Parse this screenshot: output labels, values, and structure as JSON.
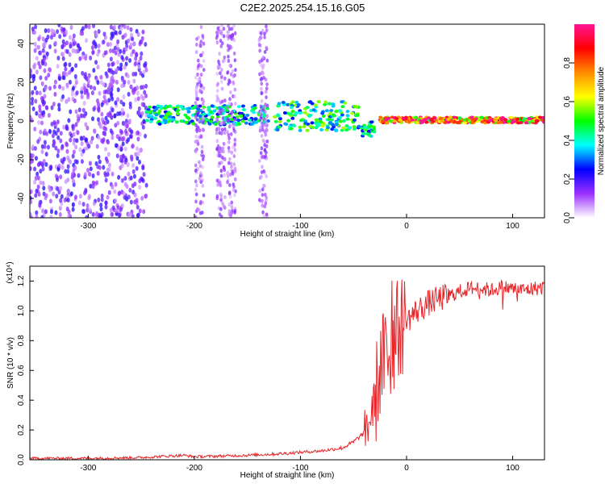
{
  "title": "C2E2.2025.254.15.16.G05",
  "chart_data": [
    {
      "type": "heatmap",
      "xlabel": "Height of straight line (km)",
      "ylabel": "Frequency (Hz)",
      "xlim": [
        -355,
        130
      ],
      "ylim": [
        -50,
        50
      ],
      "xticks": [
        -300,
        -200,
        -100,
        0,
        100
      ],
      "yticks": [
        -40,
        -20,
        0,
        20,
        40
      ],
      "colorbar": {
        "label": "Normalized spectral amplitude",
        "range": [
          0.0,
          1.0
        ],
        "ticks": [
          "0.0",
          "0.2",
          "0.4",
          "0.6",
          "0.8"
        ],
        "tick_values": [
          0.0,
          0.2,
          0.4,
          0.6,
          0.8
        ],
        "colors": [
          "#ffffff",
          "#9b30ff",
          "#0000ff",
          "#00ffff",
          "#00ff00",
          "#ffff00",
          "#ff8c00",
          "#ff0000",
          "#ff1493"
        ]
      },
      "regions": [
        {
          "x_range": [
            -355,
            -245
          ],
          "f_range": [
            -50,
            50
          ],
          "amplitude": 0.15,
          "description_value": "dense noise"
        },
        {
          "x_range": [
            -245,
            -130
          ],
          "f_range": [
            -2,
            8
          ],
          "amplitude": 0.45
        },
        {
          "x_range": [
            -125,
            -45
          ],
          "f_range": [
            -5,
            10
          ],
          "amplitude": 0.5
        },
        {
          "x_range": [
            -45,
            -30
          ],
          "f_range": [
            -8,
            0
          ],
          "amplitude": 0.45
        },
        {
          "x_range": [
            -25,
            130
          ],
          "f_range": [
            -1,
            2
          ],
          "amplitude": 0.9
        }
      ]
    },
    {
      "type": "line",
      "xlabel": "Height of straight line (km)",
      "ylabel": "SNR (10 * v/v)",
      "multiplier": "(x10⁴)",
      "xlim": [
        -355,
        130
      ],
      "ylim": [
        0.0,
        1.3
      ],
      "xticks": [
        -300,
        -200,
        -100,
        0,
        100
      ],
      "yticks": [
        "0.0",
        "0.2",
        "0.4",
        "0.6",
        "0.8",
        "1.0",
        "1.2"
      ],
      "ytick_values": [
        0.0,
        0.2,
        0.4,
        0.6,
        0.8,
        1.0,
        1.2
      ],
      "color": "#e8262a",
      "series": [
        {
          "name": "SNR",
          "x": [
            -355,
            -300,
            -250,
            -210,
            -200,
            -150,
            -120,
            -100,
            -80,
            -60,
            -50,
            -40,
            -35,
            -30,
            -25,
            -20,
            -15,
            -10,
            -5,
            0,
            5,
            10,
            20,
            30,
            40,
            50,
            60,
            70,
            80,
            90,
            100,
            110,
            120,
            130
          ],
          "y": [
            0.01,
            0.01,
            0.015,
            0.03,
            0.02,
            0.03,
            0.04,
            0.05,
            0.06,
            0.08,
            0.12,
            0.18,
            0.25,
            0.4,
            0.6,
            0.7,
            0.75,
            0.85,
            0.9,
            0.93,
            0.97,
            1.0,
            1.05,
            1.08,
            1.1,
            1.13,
            1.15,
            1.15,
            1.14,
            1.16,
            1.15,
            1.14,
            1.15,
            1.16
          ]
        }
      ]
    }
  ]
}
